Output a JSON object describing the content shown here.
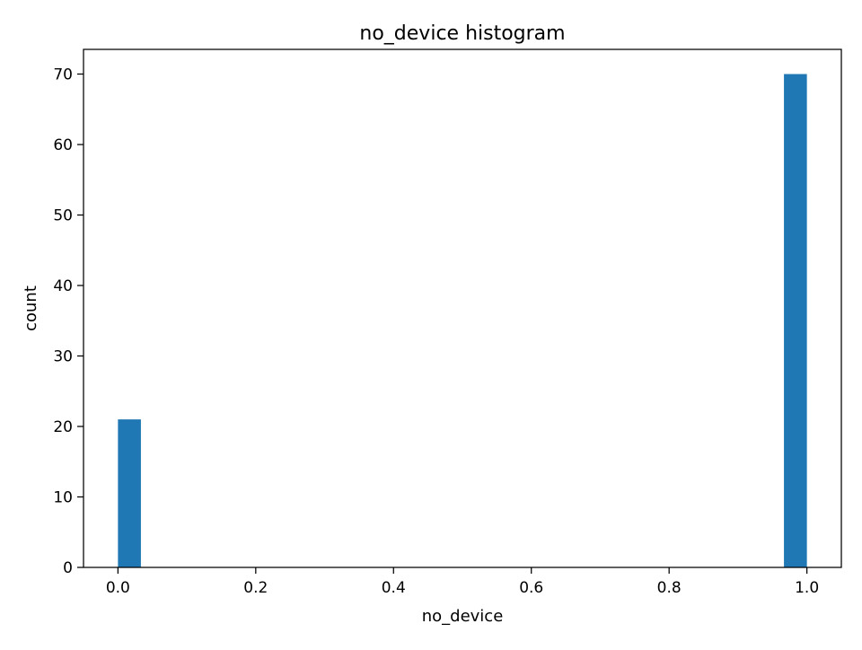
{
  "chart_data": {
    "type": "bar",
    "title": "no_device histogram",
    "xlabel": "no_device",
    "ylabel": "count",
    "xlim": [
      -0.05,
      1.05
    ],
    "ylim": [
      0,
      73.5
    ],
    "x_ticks": [
      0.0,
      0.2,
      0.4,
      0.6,
      0.8,
      1.0
    ],
    "x_tick_labels": [
      "0.0",
      "0.2",
      "0.4",
      "0.6",
      "0.8",
      "1.0"
    ],
    "y_ticks": [
      0,
      10,
      20,
      30,
      40,
      50,
      60,
      70
    ],
    "y_tick_labels": [
      "0",
      "10",
      "20",
      "30",
      "40",
      "50",
      "60",
      "70"
    ],
    "bins": [
      {
        "x0": 0.0,
        "x1": 0.0333,
        "count": 21
      },
      {
        "x0": 0.9667,
        "x1": 1.0,
        "count": 70
      }
    ],
    "bar_color": "#1f77b4",
    "grid": false
  }
}
